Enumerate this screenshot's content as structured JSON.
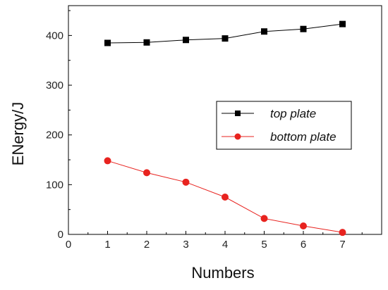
{
  "chart_data": {
    "type": "line",
    "title": "",
    "xlabel": "Numbers",
    "ylabel": "ENergy/J",
    "xlim": [
      0,
      8
    ],
    "ylim": [
      0,
      460
    ],
    "x_ticks": [
      0,
      1,
      2,
      3,
      4,
      5,
      6,
      7
    ],
    "y_ticks": [
      0,
      100,
      200,
      300,
      400
    ],
    "grid": false,
    "legend_position": "center-right",
    "x": [
      1,
      2,
      3,
      4,
      5,
      6,
      7
    ],
    "series": [
      {
        "name": "top plate",
        "color": "#000000",
        "marker": "square",
        "values": [
          385,
          386,
          391,
          394,
          408,
          413,
          423
        ]
      },
      {
        "name": "bottom plate",
        "color": "#e8231f",
        "marker": "circle",
        "values": [
          148,
          124,
          105,
          75,
          32,
          17,
          4
        ]
      }
    ]
  }
}
